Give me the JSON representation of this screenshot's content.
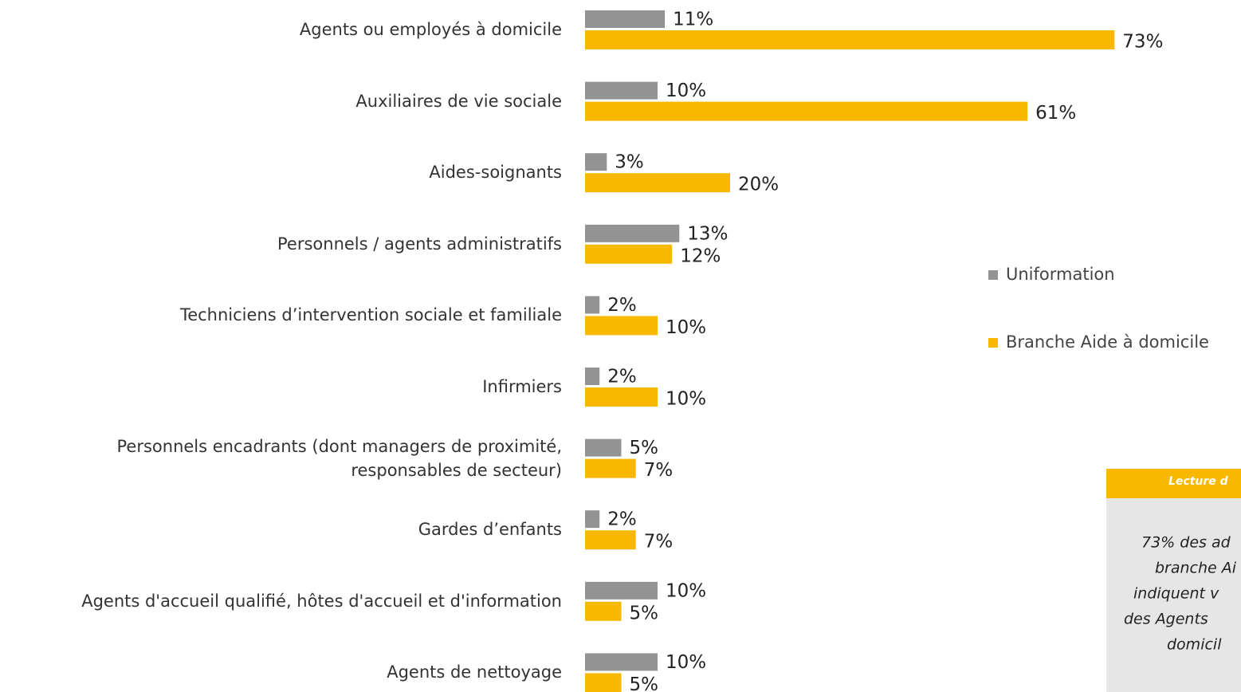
{
  "chart_data": {
    "type": "bar",
    "orientation": "horizontal",
    "categories": [
      "Agents ou employés à domicile",
      "Auxiliaires de vie sociale",
      "Aides-soignants",
      "Personnels / agents administratifs",
      "Techniciens d’intervention sociale et familiale",
      "Infirmiers",
      "Personnels encadrants (dont managers de proximité,\nresponsables de secteur)",
      "Gardes d’enfants",
      "Agents d'accueil qualifié, hôtes d'accueil et d'information",
      "Agents de nettoyage"
    ],
    "series": [
      {
        "name": "Uniformation",
        "color": "#939393",
        "values": [
          11,
          10,
          3,
          13,
          2,
          2,
          5,
          2,
          10,
          10
        ],
        "value_labels": [
          "11%",
          "10%",
          "3%",
          "13%",
          "2%",
          "2%",
          "5%",
          "2%",
          "10%",
          "10%"
        ]
      },
      {
        "name": "Branche Aide à domicile",
        "color": "#f9b800",
        "values": [
          73,
          61,
          20,
          12,
          10,
          10,
          7,
          7,
          5,
          5
        ],
        "value_labels": [
          "73%",
          "61%",
          "20%",
          "12%",
          "10%",
          "10%",
          "7%",
          "7%",
          "5%",
          "5%"
        ]
      }
    ],
    "legend": "right",
    "annotation": {
      "title": "Lecture d",
      "lines": [
        "73% des ad",
        "branche Ai",
        "indiquent v",
        "des Agents",
        "domicil"
      ]
    }
  }
}
